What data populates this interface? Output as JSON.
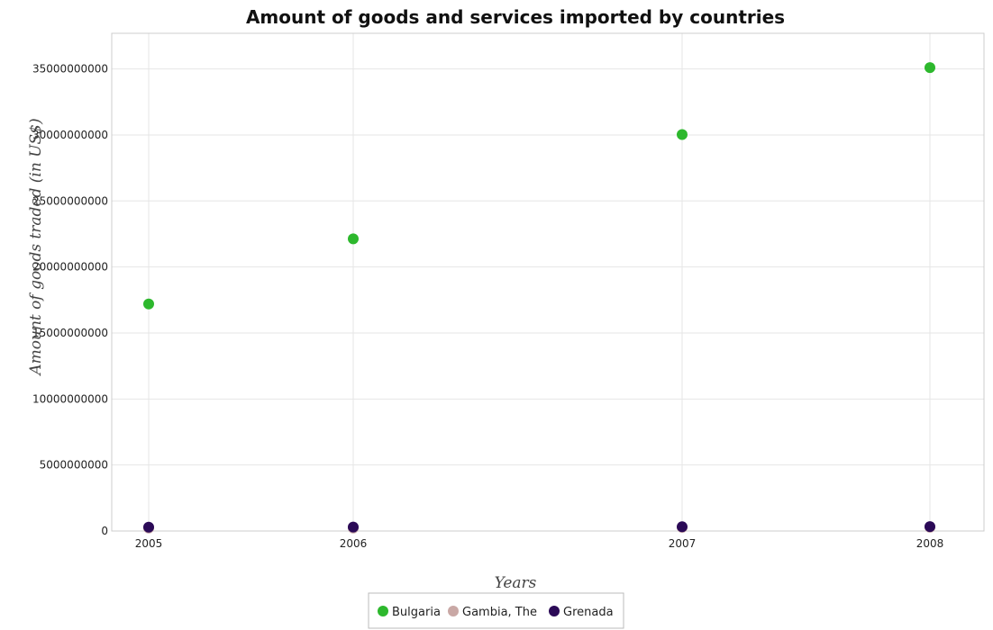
{
  "chart_data": {
    "type": "scatter",
    "title": "Amount of goods and services imported by countries",
    "xlabel": "Years",
    "ylabel": "Amount of goods traded (in US$)",
    "categories": [
      "2005",
      "2006",
      "2007",
      "2008"
    ],
    "y_ticks": [
      "0",
      "5000000000",
      "10000000000",
      "15000000000",
      "20000000000",
      "25000000000",
      "30000000000",
      "35000000000"
    ],
    "ylim": [
      0,
      37700000000
    ],
    "grid": true,
    "legend_position": "bottom-center",
    "series": [
      {
        "name": "Bulgaria",
        "color": "#2db82d",
        "values": [
          17200000000,
          22130000000,
          30030000000,
          35100000000
        ]
      },
      {
        "name": "Gambia, The",
        "color": "#c9a8a5",
        "values": [
          220000000,
          220000000,
          270000000,
          280000000
        ]
      },
      {
        "name": "Grenada",
        "color": "#2b0a57",
        "values": [
          290000000,
          300000000,
          320000000,
          330000000
        ]
      }
    ]
  }
}
